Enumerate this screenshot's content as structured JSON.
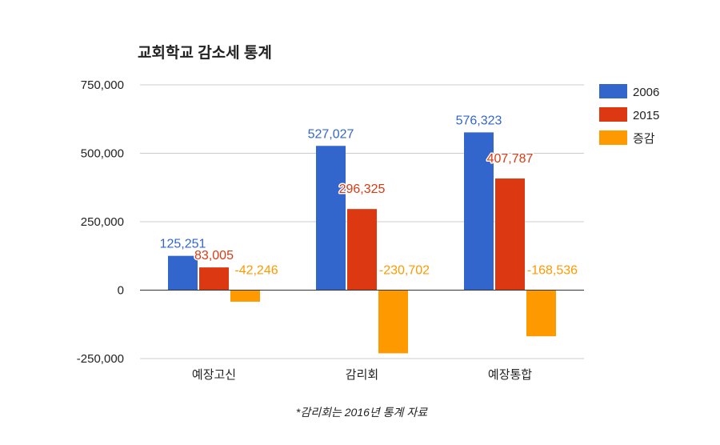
{
  "chart_data": {
    "type": "bar",
    "title": "교회학교 감소세 통계",
    "xlabel": "",
    "ylabel": "",
    "categories": [
      "예장고신",
      "감리회",
      "예장통합"
    ],
    "series": [
      {
        "name": "2006",
        "color": "#3366cc",
        "values": [
          125251,
          527027,
          576323
        ],
        "labels": [
          "125,251",
          "527,027",
          "576,323"
        ]
      },
      {
        "name": "2015",
        "color": "#dc3912",
        "values": [
          83005,
          296325,
          407787
        ],
        "labels": [
          "83,005",
          "296,325",
          "407,787"
        ]
      },
      {
        "name": "증감",
        "color": "#ff9900",
        "values": [
          -42246,
          -230702,
          -168536
        ],
        "labels": [
          "-42,246",
          "-230,702",
          "-168,536"
        ]
      }
    ],
    "ylim": [
      -250000,
      750000
    ],
    "yticks": [
      750000,
      500000,
      250000,
      0,
      -250000
    ],
    "ytick_labels": [
      "750,000",
      "500,000",
      "250,000",
      "0",
      "-250,000"
    ],
    "grid": true,
    "legend": "right",
    "annotation": "*감리회는 2016년 통계 자료"
  }
}
